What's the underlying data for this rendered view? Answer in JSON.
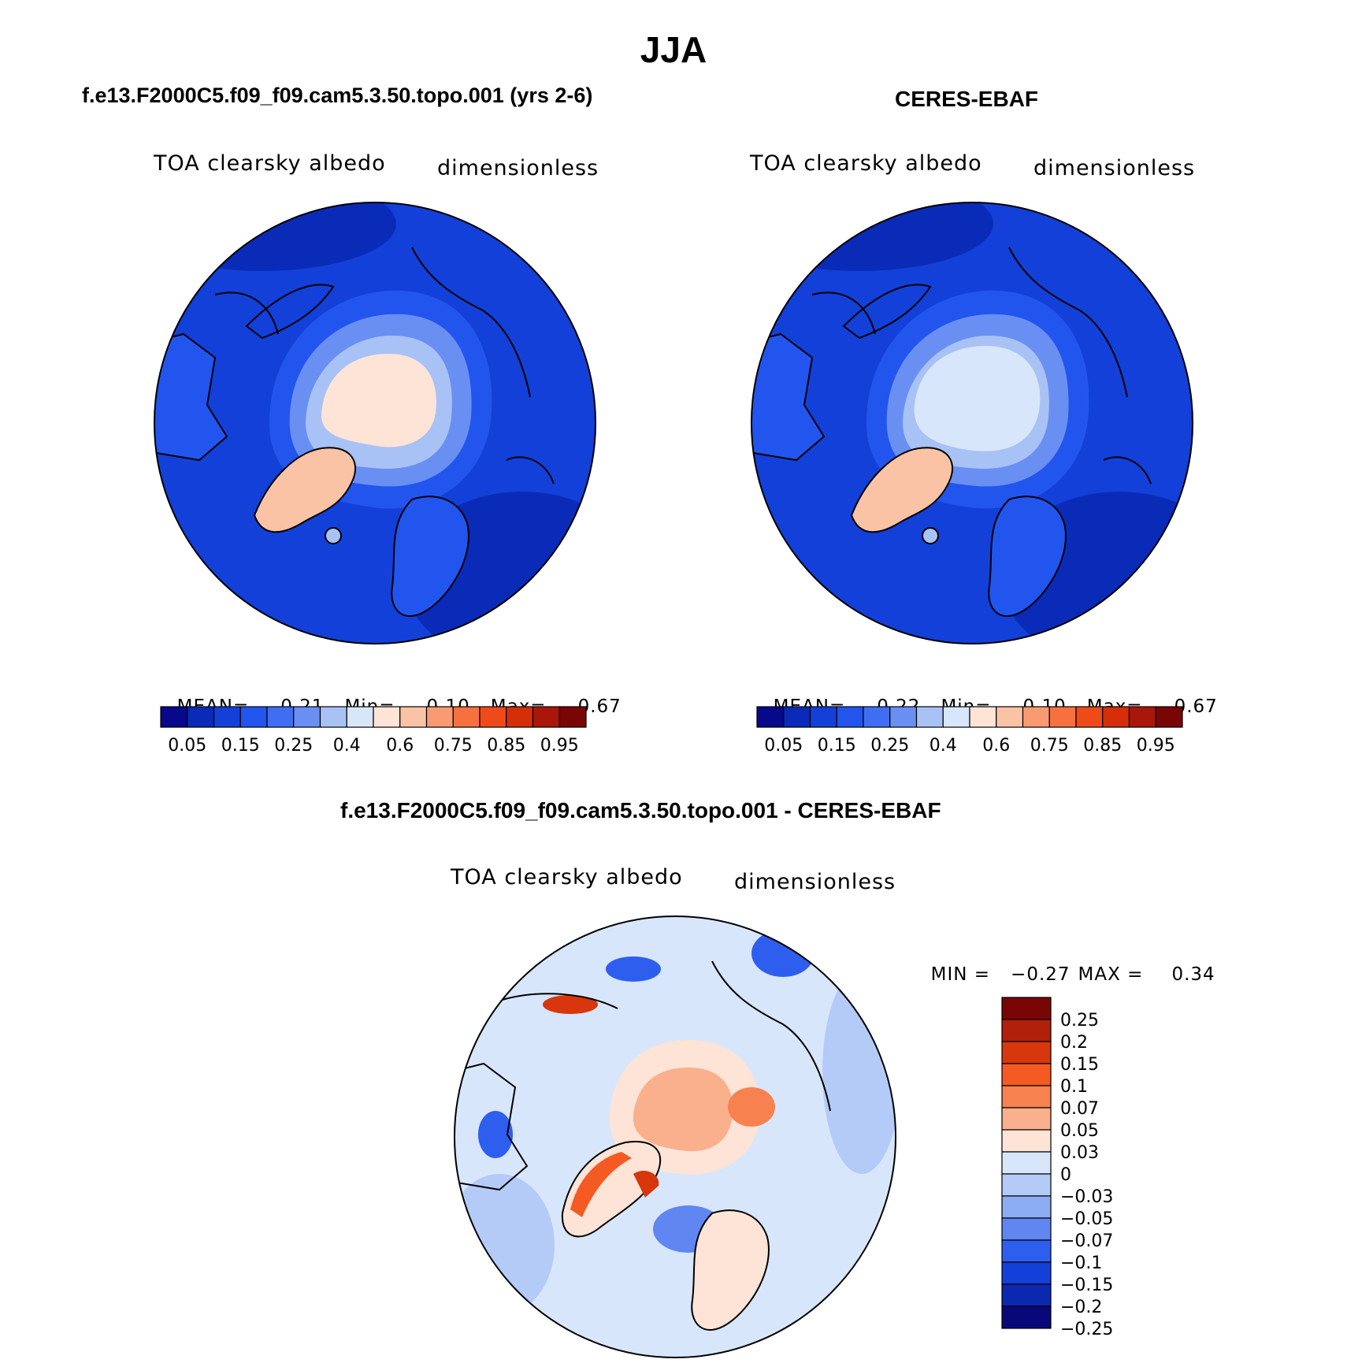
{
  "page": {
    "season": "JJA",
    "colors": {
      "land_outline": "#000000",
      "background": "#ffffff"
    }
  },
  "chart_data": [
    {
      "type": "heatmap",
      "projection": "north polar stereographic",
      "title": "f.e13.F2000C5.f09_f09.cam5.3.50.topo.001 (yrs 2-6)",
      "left_label": "TOA clearsky albedo",
      "right_label": "dimensionless",
      "stats": {
        "mean_label": "MEAN=",
        "mean": "0.21",
        "min_label": "Min=",
        "min": "0.10",
        "max_label": "Max=",
        "max": "0.67"
      },
      "colorbar": {
        "orientation": "horizontal",
        "tick_labels": [
          "0.05",
          "0.15",
          "0.25",
          "0.4",
          "0.6",
          "0.75",
          "0.85",
          "0.95"
        ],
        "levels": [
          0.05,
          0.1,
          0.15,
          0.2,
          0.25,
          0.3,
          0.4,
          0.5,
          0.6,
          0.7,
          0.75,
          0.8,
          0.85,
          0.9,
          0.95
        ],
        "colors": [
          "#08088a",
          "#0a2bb8",
          "#1240d8",
          "#2255ee",
          "#3f6ef2",
          "#6a8ff3",
          "#a8c2f5",
          "#d8e6fb",
          "#fde4d6",
          "#fbc3a5",
          "#f99a72",
          "#f7703f",
          "#ef4a1a",
          "#d52e08",
          "#a8170a",
          "#7a0505"
        ]
      },
      "pattern": {
        "polar_cap_mean": 0.55,
        "greenland": 0.6,
        "ocean_background": 0.17
      }
    },
    {
      "type": "heatmap",
      "projection": "north polar stereographic",
      "title": "CERES-EBAF",
      "left_label": "TOA clearsky albedo",
      "right_label": "dimensionless",
      "stats": {
        "mean_label": "MEAN=",
        "mean": "0.22",
        "min_label": "Min=",
        "min": "0.10",
        "max_label": "Max=",
        "max": "0.67"
      },
      "colorbar": {
        "orientation": "horizontal",
        "tick_labels": [
          "0.05",
          "0.15",
          "0.25",
          "0.4",
          "0.6",
          "0.75",
          "0.85",
          "0.95"
        ],
        "levels": [
          0.05,
          0.1,
          0.15,
          0.2,
          0.25,
          0.3,
          0.4,
          0.5,
          0.6,
          0.7,
          0.75,
          0.8,
          0.85,
          0.9,
          0.95
        ],
        "colors": [
          "#08088a",
          "#0a2bb8",
          "#1240d8",
          "#2255ee",
          "#3f6ef2",
          "#6a8ff3",
          "#a8c2f5",
          "#d8e6fb",
          "#fde4d6",
          "#fbc3a5",
          "#f99a72",
          "#f7703f",
          "#ef4a1a",
          "#d52e08",
          "#a8170a",
          "#7a0505"
        ]
      },
      "pattern": {
        "polar_cap_mean": 0.45,
        "greenland": 0.6,
        "ocean_background": 0.17
      }
    },
    {
      "type": "heatmap",
      "projection": "north polar stereographic",
      "title": "f.e13.F2000C5.f09_f09.cam5.3.50.topo.001 - CERES-EBAF",
      "left_label": "TOA clearsky albedo",
      "right_label": "dimensionless",
      "stats": {
        "min_label": "MIN =",
        "min": "−0.27",
        "max_label": "MAX =",
        "max": "0.34"
      },
      "colorbar": {
        "orientation": "vertical",
        "tick_labels": [
          "0.25",
          "0.2",
          "0.15",
          "0.1",
          "0.07",
          "0.05",
          "0.03",
          "0",
          "−0.03",
          "−0.05",
          "−0.07",
          "−0.1",
          "−0.15",
          "−0.2",
          "−0.25"
        ],
        "colors": [
          "#7a0505",
          "#b0200a",
          "#d8360c",
          "#f45a22",
          "#f7814f",
          "#fab08c",
          "#fde4d6",
          "#d8e6fb",
          "#b3cbf6",
          "#8cacf4",
          "#5f86f1",
          "#2e5eee",
          "#1240d8",
          "#0a28b0",
          "#08087a"
        ]
      },
      "pattern": {
        "polar_cap_mean": 0.05,
        "greenland_edges": 0.15,
        "ocean_background": 0.0
      }
    }
  ]
}
